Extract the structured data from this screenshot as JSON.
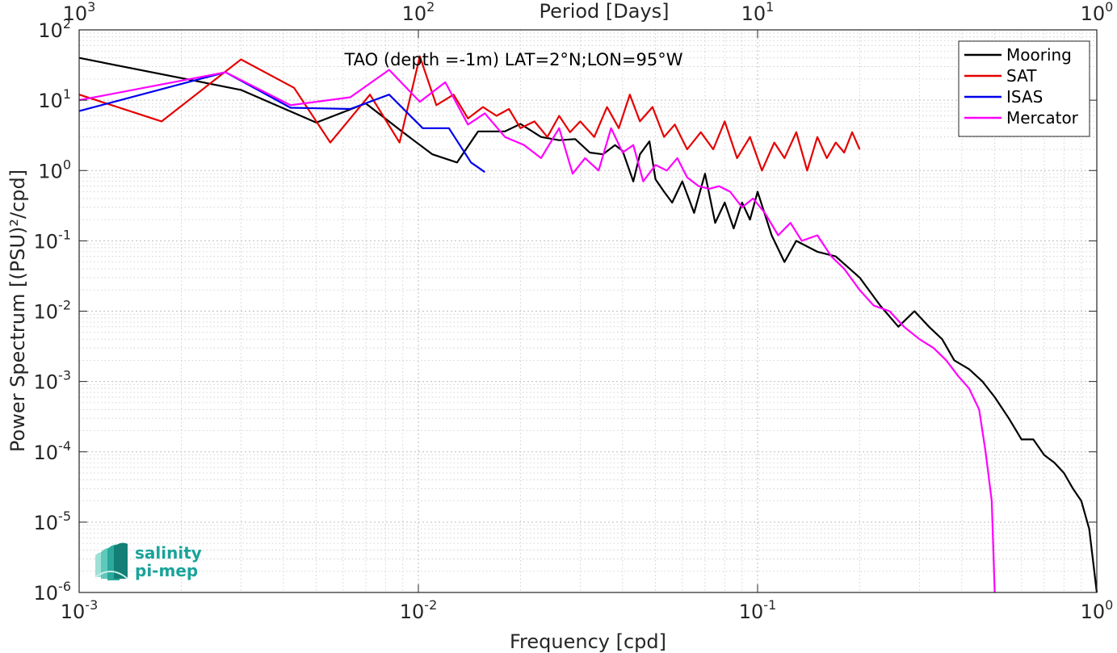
{
  "chart_data": {
    "type": "line",
    "title": "TAO (depth =-1m) LAT=2°N;LON=95°W",
    "xlabel": "Frequency [cpd]",
    "ylabel": "Power Spectrum [(PSU)²/cpd]",
    "x2label": "Period [Days]",
    "xscale": "log",
    "yscale": "log",
    "xlim": [
      0.001,
      1
    ],
    "ylim": [
      1e-06,
      100
    ],
    "grid": true,
    "legend_position": "top-right",
    "x_ticks": [
      {
        "base": "10",
        "exp": "-3"
      },
      {
        "base": "10",
        "exp": "-2"
      },
      {
        "base": "10",
        "exp": "-1"
      },
      {
        "base": "10",
        "exp": "0"
      }
    ],
    "x2_ticks": [
      {
        "base": "10",
        "exp": "3"
      },
      {
        "base": "10",
        "exp": "2"
      },
      {
        "base": "10",
        "exp": "1"
      },
      {
        "base": "10",
        "exp": "0"
      }
    ],
    "y_ticks": [
      {
        "base": "10",
        "exp": "2"
      },
      {
        "base": "10",
        "exp": "1"
      },
      {
        "base": "10",
        "exp": "0"
      },
      {
        "base": "10",
        "exp": "-1"
      },
      {
        "base": "10",
        "exp": "-2"
      },
      {
        "base": "10",
        "exp": "-3"
      },
      {
        "base": "10",
        "exp": "-4"
      },
      {
        "base": "10",
        "exp": "-5"
      },
      {
        "base": "10",
        "exp": "-6"
      }
    ],
    "series": [
      {
        "name": "Mooring",
        "color": "#000000",
        "x": [
          0.001,
          0.003,
          0.005,
          0.007,
          0.009,
          0.011,
          0.013,
          0.015,
          0.018,
          0.02,
          0.023,
          0.026,
          0.029,
          0.032,
          0.035,
          0.038,
          0.04,
          0.043,
          0.045,
          0.048,
          0.05,
          0.053,
          0.056,
          0.06,
          0.065,
          0.07,
          0.075,
          0.08,
          0.085,
          0.09,
          0.095,
          0.1,
          0.11,
          0.12,
          0.13,
          0.15,
          0.17,
          0.2,
          0.23,
          0.26,
          0.29,
          0.32,
          0.35,
          0.38,
          0.42,
          0.46,
          0.5,
          0.55,
          0.6,
          0.65,
          0.7,
          0.75,
          0.8,
          0.85,
          0.9,
          0.95,
          1.0
        ],
        "values": [
          40,
          14,
          4.8,
          9,
          3.5,
          1.7,
          1.3,
          3.6,
          3.6,
          4.6,
          3.0,
          2.7,
          2.8,
          1.8,
          1.7,
          2.3,
          1.9,
          0.7,
          1.7,
          2.6,
          0.75,
          0.5,
          0.35,
          0.7,
          0.25,
          0.9,
          0.18,
          0.35,
          0.15,
          0.35,
          0.2,
          0.5,
          0.12,
          0.05,
          0.1,
          0.07,
          0.06,
          0.03,
          0.012,
          0.006,
          0.01,
          0.006,
          0.004,
          0.002,
          0.0015,
          0.001,
          0.0006,
          0.0003,
          0.00015,
          0.00015,
          9e-05,
          7e-05,
          5e-05,
          3e-05,
          2e-05,
          8e-06,
          1e-06
        ]
      },
      {
        "name": "SAT",
        "color": "#e50000",
        "x": [
          0.001,
          0.00175,
          0.003,
          0.0043,
          0.0055,
          0.0072,
          0.0088,
          0.0101,
          0.0113,
          0.0127,
          0.014,
          0.0155,
          0.017,
          0.0185,
          0.02,
          0.022,
          0.024,
          0.026,
          0.028,
          0.03,
          0.033,
          0.036,
          0.039,
          0.042,
          0.045,
          0.049,
          0.053,
          0.057,
          0.062,
          0.068,
          0.074,
          0.08,
          0.087,
          0.095,
          0.103,
          0.112,
          0.12,
          0.13,
          0.14,
          0.15,
          0.16,
          0.17,
          0.18,
          0.19,
          0.2
        ],
        "values": [
          12,
          5,
          38,
          15,
          2.5,
          12,
          2.5,
          42,
          8.5,
          12,
          5.5,
          8.0,
          6.0,
          7.5,
          4.0,
          5.0,
          3.0,
          6.0,
          3.5,
          5.0,
          3.0,
          8.0,
          4.0,
          12,
          5.0,
          8.0,
          3.0,
          4.5,
          2.0,
          3.5,
          2.0,
          5.0,
          1.5,
          3.0,
          1.0,
          2.5,
          1.5,
          3.5,
          1.0,
          3.0,
          1.5,
          2.5,
          1.8,
          3.5,
          2.0
        ]
      },
      {
        "name": "ISAS",
        "color": "#0000ee",
        "x": [
          0.001,
          0.0027,
          0.0042,
          0.0063,
          0.0082,
          0.0103,
          0.0123,
          0.0143,
          0.0157
        ],
        "values": [
          7,
          25,
          7.8,
          7.5,
          12,
          4.0,
          4.0,
          1.3,
          0.95
        ]
      },
      {
        "name": "Mercator",
        "color": "#ff00ff",
        "x": [
          0.001,
          0.0027,
          0.0042,
          0.0063,
          0.0082,
          0.0101,
          0.012,
          0.014,
          0.0157,
          0.018,
          0.0205,
          0.023,
          0.026,
          0.0285,
          0.031,
          0.034,
          0.037,
          0.04,
          0.043,
          0.046,
          0.05,
          0.054,
          0.058,
          0.062,
          0.067,
          0.072,
          0.077,
          0.083,
          0.09,
          0.097,
          0.105,
          0.115,
          0.125,
          0.135,
          0.15,
          0.165,
          0.18,
          0.2,
          0.22,
          0.245,
          0.27,
          0.3,
          0.33,
          0.36,
          0.39,
          0.42,
          0.45,
          0.47,
          0.49,
          0.5
        ],
        "values": [
          10,
          25,
          8.5,
          11,
          27,
          9.5,
          18,
          4.5,
          6.5,
          3.0,
          2.3,
          1.5,
          4.0,
          0.9,
          1.5,
          1.0,
          4.0,
          1.8,
          2.3,
          0.7,
          1.2,
          1.0,
          1.5,
          0.8,
          0.6,
          0.55,
          0.6,
          0.5,
          0.3,
          0.4,
          0.25,
          0.12,
          0.18,
          0.1,
          0.12,
          0.06,
          0.04,
          0.02,
          0.012,
          0.01,
          0.006,
          0.004,
          0.003,
          0.002,
          0.0012,
          0.0008,
          0.0004,
          0.0001,
          2e-05,
          1e-06
        ]
      }
    ]
  },
  "logo": {
    "line1": "salinity",
    "line2": "pi-mep"
  }
}
